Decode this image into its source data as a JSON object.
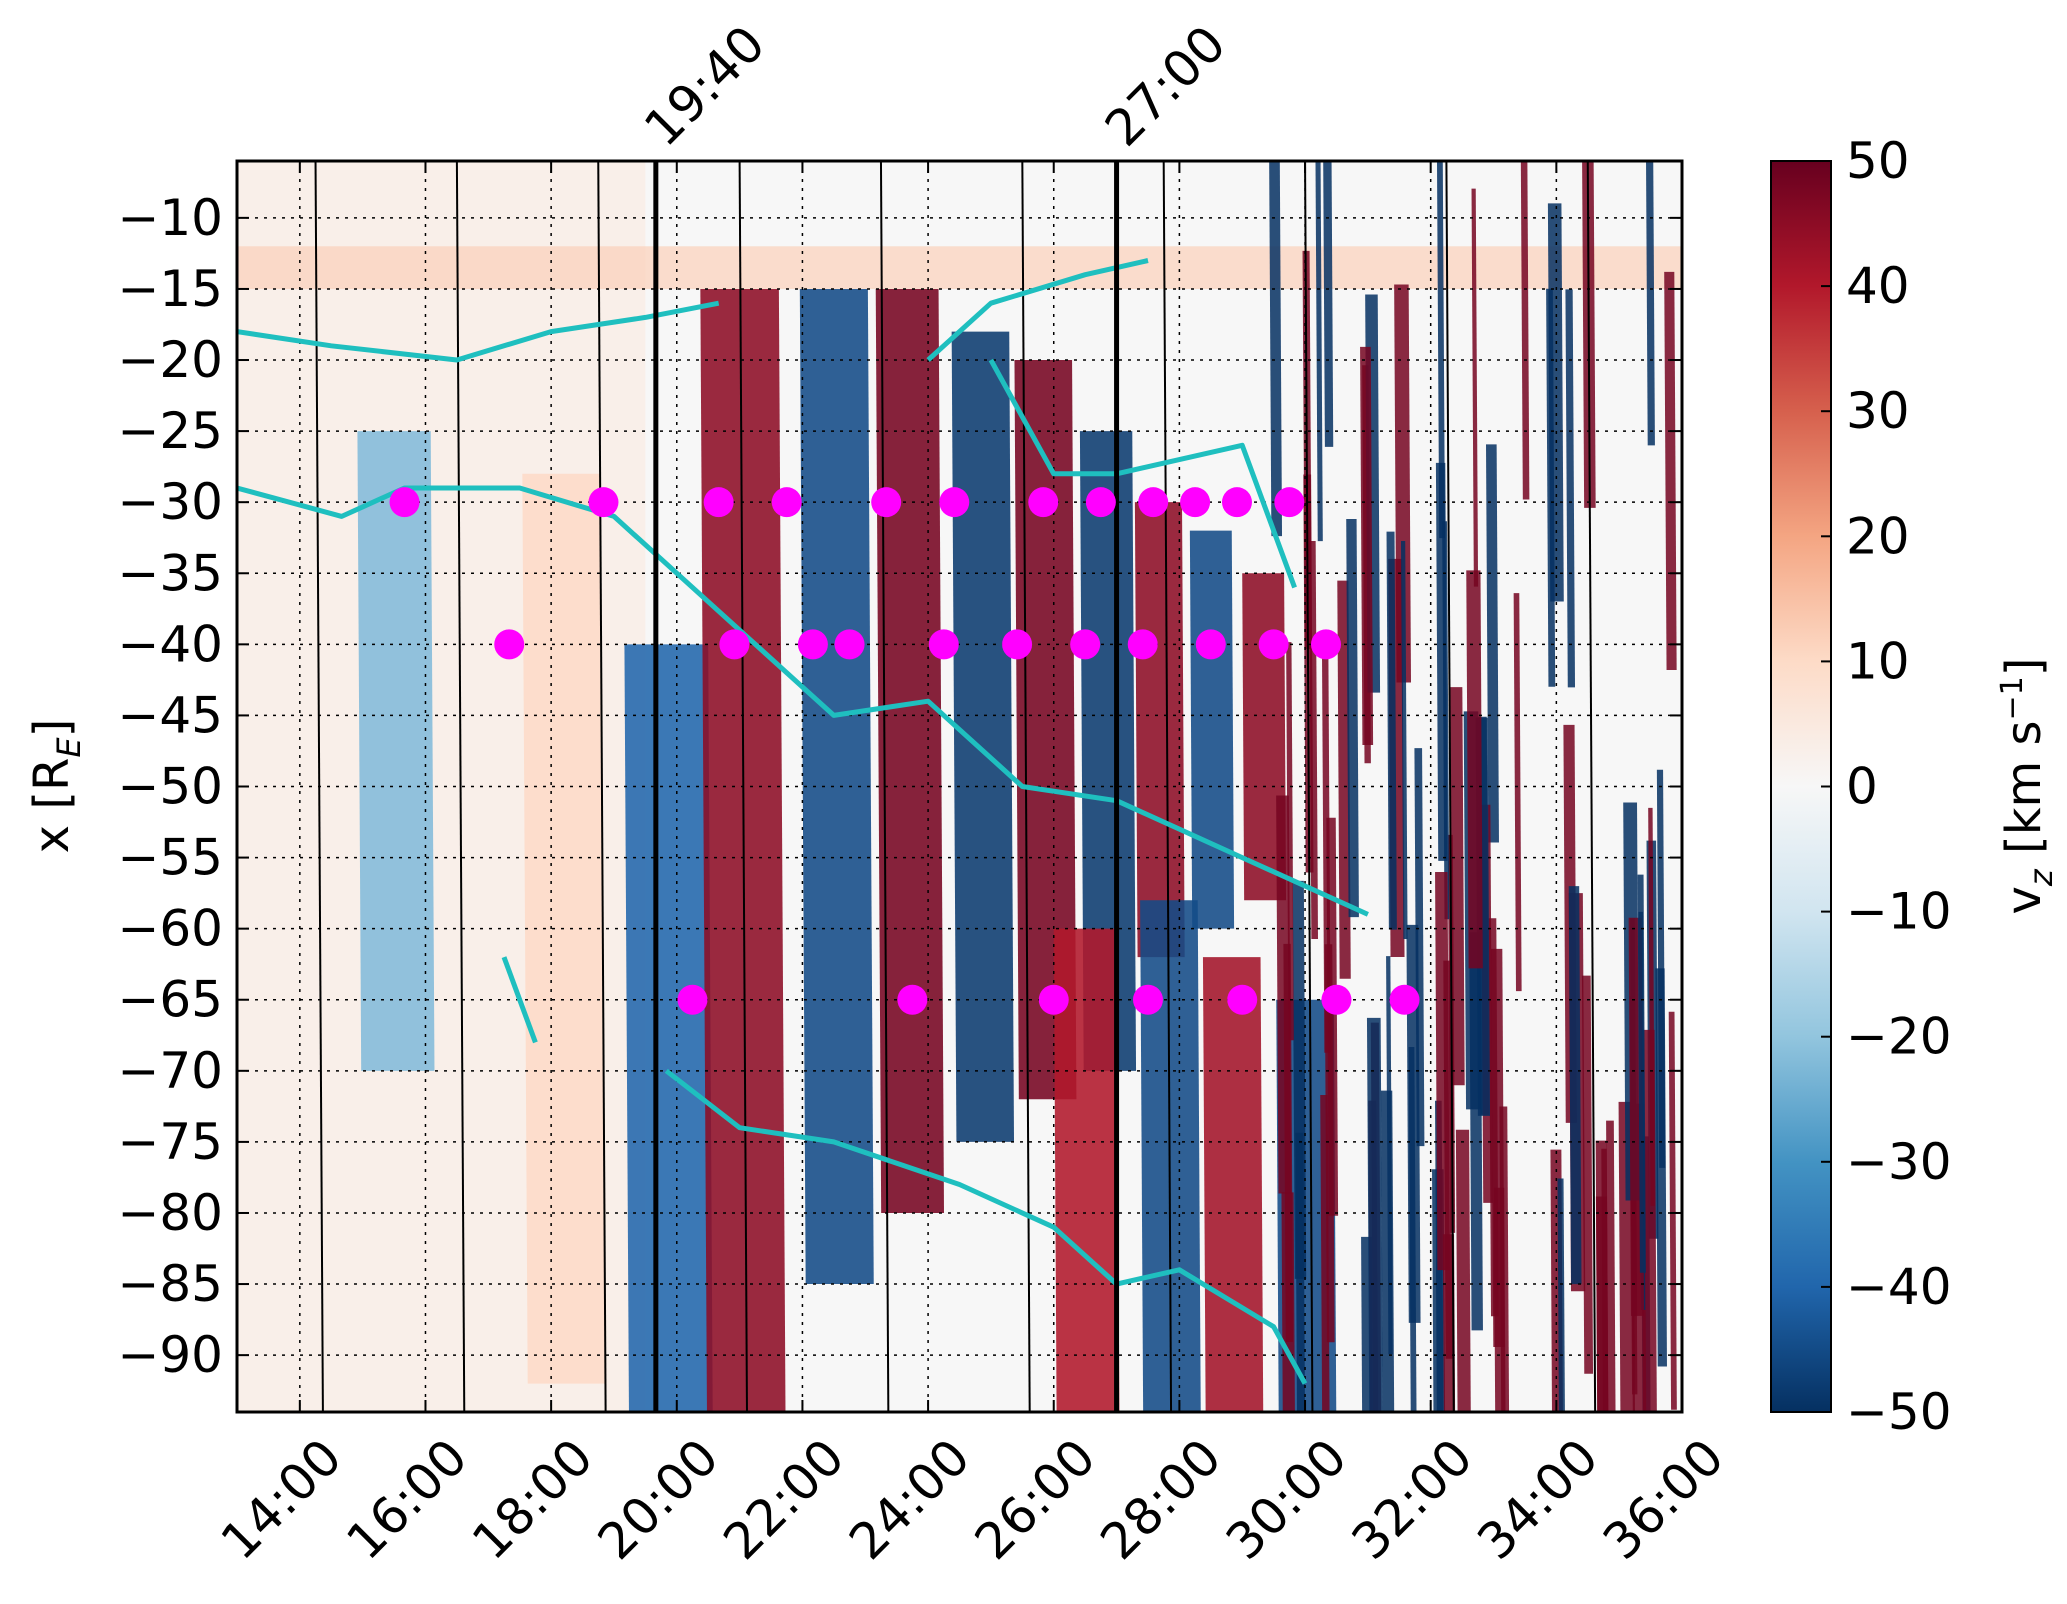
{
  "chart_data": {
    "type": "heatmap",
    "title": "",
    "xlabel": "",
    "ylabel": "x [R",
    "ylabel_subscript": "E",
    "ylabel_close": "]",
    "xlim_min": [
      13,
      0
    ],
    "xlim_max": [
      36,
      0
    ],
    "ylim": [
      -94,
      -6
    ],
    "x_ticks": [
      "14:00",
      "16:00",
      "18:00",
      "20:00",
      "22:00",
      "24:00",
      "26:00",
      "28:00",
      "30:00",
      "32:00",
      "34:00",
      "36:00"
    ],
    "x_tick_values_min": [
      14,
      16,
      18,
      20,
      22,
      24,
      26,
      28,
      30,
      32,
      34,
      36
    ],
    "y_ticks": [
      "−10",
      "−15",
      "−20",
      "−25",
      "−30",
      "−35",
      "−40",
      "−45",
      "−50",
      "−55",
      "−60",
      "−65",
      "−70",
      "−75",
      "−80",
      "−85",
      "−90"
    ],
    "y_tick_values": [
      -10,
      -15,
      -20,
      -25,
      -30,
      -35,
      -40,
      -45,
      -50,
      -55,
      -60,
      -65,
      -70,
      -75,
      -80,
      -85,
      -90
    ],
    "grid": true,
    "markers": [
      {
        "label": "19:40",
        "time_min": [
          19,
          40
        ]
      },
      {
        "label": "27:00",
        "time_min": [
          27,
          0
        ]
      }
    ],
    "colorbar": {
      "label": "v",
      "label_subscript": "z",
      "label_units": " [km s",
      "label_exponent": "−1",
      "label_close": "]",
      "range": [
        -50,
        50
      ],
      "ticks": [
        "50",
        "40",
        "30",
        "20",
        "10",
        "0",
        "−10",
        "−20",
        "−30",
        "−40",
        "−50"
      ],
      "tick_values": [
        50,
        40,
        30,
        20,
        10,
        0,
        -10,
        -20,
        -30,
        -40,
        -50
      ],
      "colormap": [
        "#053061",
        "#2166ac",
        "#4393c3",
        "#92c5de",
        "#d1e5f0",
        "#f7f7f7",
        "#fddbc7",
        "#f4a582",
        "#d6604d",
        "#b2182b",
        "#67001f"
      ]
    },
    "points": [
      {
        "t": [
          15,
          40
        ],
        "x": -30
      },
      {
        "t": [
          18,
          50
        ],
        "x": -30
      },
      {
        "t": [
          20,
          40
        ],
        "x": -30
      },
      {
        "t": [
          21,
          45
        ],
        "x": -30
      },
      {
        "t": [
          23,
          20
        ],
        "x": -30
      },
      {
        "t": [
          24,
          25
        ],
        "x": -30
      },
      {
        "t": [
          25,
          50
        ],
        "x": -30
      },
      {
        "t": [
          26,
          45
        ],
        "x": -30
      },
      {
        "t": [
          27,
          35
        ],
        "x": -30
      },
      {
        "t": [
          28,
          15
        ],
        "x": -30
      },
      {
        "t": [
          28,
          55
        ],
        "x": -30
      },
      {
        "t": [
          29,
          45
        ],
        "x": -30
      },
      {
        "t": [
          17,
          20
        ],
        "x": -40
      },
      {
        "t": [
          20,
          55
        ],
        "x": -40
      },
      {
        "t": [
          22,
          10
        ],
        "x": -40
      },
      {
        "t": [
          22,
          45
        ],
        "x": -40
      },
      {
        "t": [
          24,
          15
        ],
        "x": -40
      },
      {
        "t": [
          25,
          25
        ],
        "x": -40
      },
      {
        "t": [
          26,
          30
        ],
        "x": -40
      },
      {
        "t": [
          27,
          25
        ],
        "x": -40
      },
      {
        "t": [
          28,
          30
        ],
        "x": -40
      },
      {
        "t": [
          29,
          30
        ],
        "x": -40
      },
      {
        "t": [
          30,
          20
        ],
        "x": -40
      },
      {
        "t": [
          20,
          15
        ],
        "x": -65
      },
      {
        "t": [
          23,
          45
        ],
        "x": -65
      },
      {
        "t": [
          26,
          0
        ],
        "x": -65
      },
      {
        "t": [
          27,
          30
        ],
        "x": -65
      },
      {
        "t": [
          29,
          0
        ],
        "x": -65
      },
      {
        "t": [
          30,
          30
        ],
        "x": -65
      },
      {
        "t": [
          31,
          35
        ],
        "x": -65
      }
    ],
    "point_color": "#ff00ff",
    "trace_color": "#1fbfbf",
    "phase_line_slope_min_per_RE": -0.08,
    "phase_line_spacing_min": [
      2,
      15
    ],
    "phase_line_start_min": [
      2,
      0
    ]
  }
}
